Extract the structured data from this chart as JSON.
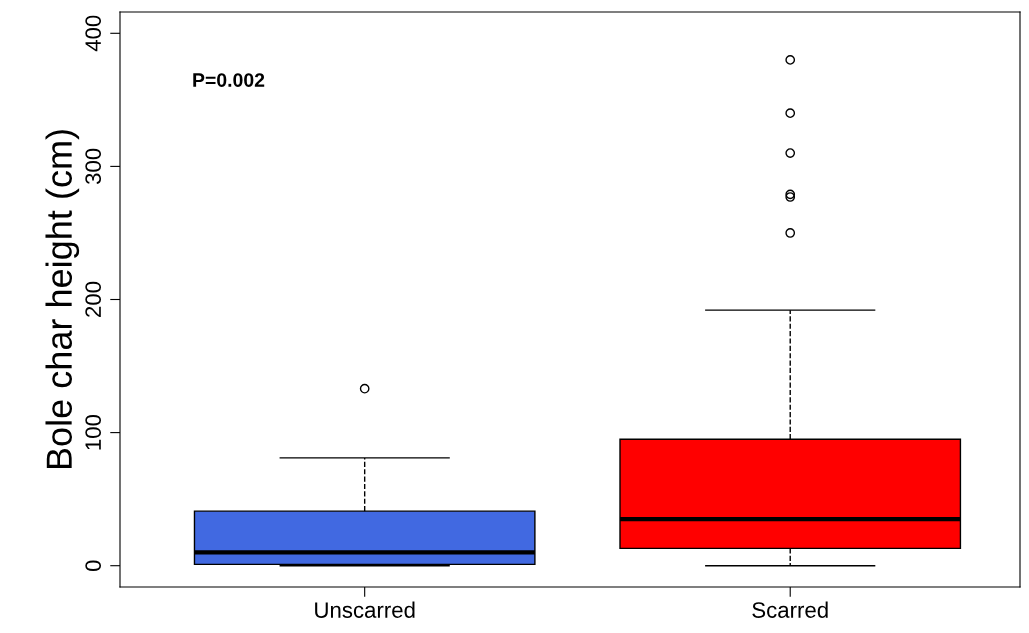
{
  "chart_data": {
    "type": "box",
    "ylabel": "Bole char height (cm)",
    "categories": [
      "Unscarred",
      "Scarred"
    ],
    "colors": [
      "#4169e1",
      "#ff0000"
    ],
    "boxes": [
      {
        "low": 0,
        "q1": 1,
        "median": 10,
        "q3": 41,
        "high": 81,
        "outliers": [
          133
        ]
      },
      {
        "low": 0,
        "q1": 13,
        "median": 35,
        "q3": 95,
        "high": 192,
        "outliers": [
          250,
          277,
          279,
          310,
          340,
          380
        ]
      }
    ],
    "ylim": [
      -16,
      416
    ],
    "yticks": [
      0,
      100,
      200,
      300,
      400
    ],
    "grid": false,
    "line_style": "dashed",
    "annotations": [
      "P=0.002"
    ]
  }
}
